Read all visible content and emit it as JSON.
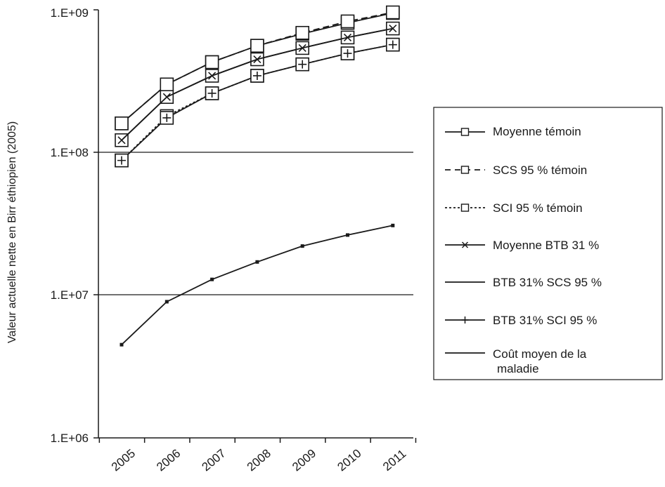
{
  "chart_data": {
    "type": "line",
    "title": "",
    "xlabel": "",
    "ylabel": "Valeur actuelle nette en Birr éthiopien (2005)",
    "y_scale": "log",
    "ylim": [
      1000000,
      1000000000
    ],
    "y_ticks": [
      {
        "value": 1000000,
        "label": "1.E+06"
      },
      {
        "value": 10000000,
        "label": "1.E+07"
      },
      {
        "value": 100000000,
        "label": "1.E+08"
      },
      {
        "value": 1000000000,
        "label": "1.E+09"
      }
    ],
    "categories": [
      "2005",
      "2006",
      "2007",
      "2008",
      "2009",
      "2010",
      "2011"
    ],
    "grid": "horizontal at 1.E+07 and 1.E+08",
    "legend_position": "right",
    "series": [
      {
        "name": "Moyenne témoin",
        "marker": "square",
        "line": "solid",
        "values": [
          160000000,
          300000000,
          430000000,
          560000000,
          680000000,
          810000000,
          950000000
        ]
      },
      {
        "name": "SCS 95 % témoin",
        "marker": "square",
        "line": "dashed",
        "values": [
          160000000,
          300000000,
          430000000,
          560000000,
          690000000,
          830000000,
          960000000
        ]
      },
      {
        "name": "SCI 95 % témoin",
        "marker": "square",
        "line": "dotted",
        "values": [
          88000000,
          180000000,
          260000000,
          345000000,
          415000000,
          495000000,
          570000000
        ]
      },
      {
        "name": "Moyenne BTB 31 %",
        "marker": "x",
        "line": "solid",
        "values": [
          122000000,
          245000000,
          345000000,
          450000000,
          540000000,
          640000000,
          740000000
        ]
      },
      {
        "name": "BTB 31% SCS 95 %",
        "marker": "none",
        "line": "solid",
        "values": [
          122000000,
          245000000,
          345000000,
          450000000,
          540000000,
          640000000,
          740000000
        ]
      },
      {
        "name": "BTB  31% SCI 95 %",
        "marker": "plus",
        "line": "solid",
        "values": [
          88000000,
          175000000,
          260000000,
          345000000,
          415000000,
          495000000,
          570000000
        ]
      },
      {
        "name": "Coût moyen de la maladie",
        "marker": "small-square",
        "line": "solid",
        "values": [
          4500000,
          9000000,
          12900000,
          17100000,
          22100000,
          26400000,
          30800000
        ]
      }
    ]
  },
  "legend": {
    "items": [
      {
        "label": "Moyenne témoin"
      },
      {
        "label": "SCS 95 % témoin"
      },
      {
        "label": "SCI 95 % témoin"
      },
      {
        "label": "Moyenne BTB 31 %"
      },
      {
        "label": "BTB 31% SCS 95 %"
      },
      {
        "label": "BTB  31% SCI 95 %"
      },
      {
        "label_line1": "Coût moyen de la",
        "label_line2": "maladie"
      }
    ]
  }
}
